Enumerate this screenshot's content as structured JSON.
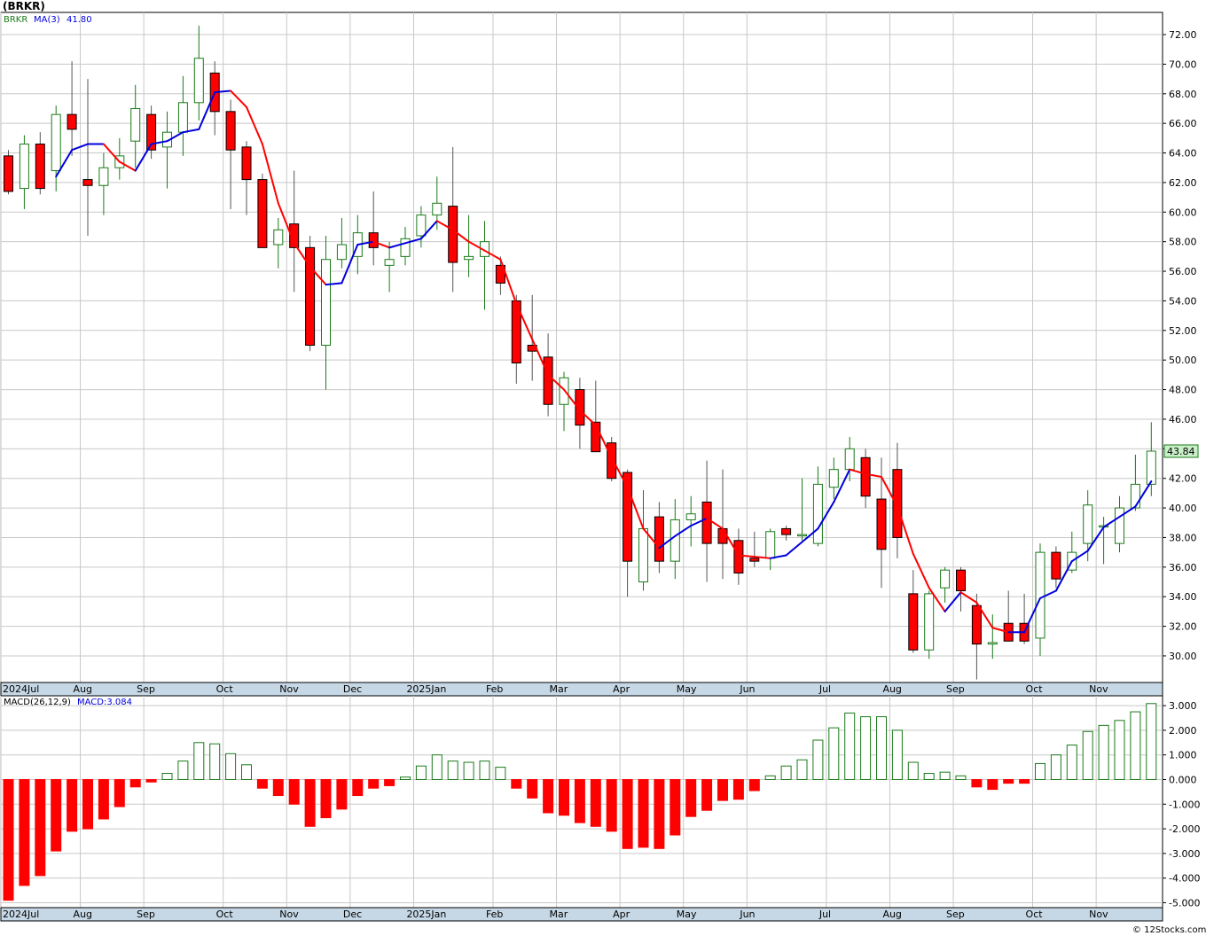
{
  "header": {
    "title": "(BRKR)"
  },
  "legend": {
    "price_label": "BRKR",
    "ma_label": "MA(3)",
    "ma_value": "41.80"
  },
  "macd_legend": {
    "label": "MACD(26,12,9)",
    "value": "MACD:3.084"
  },
  "credit": "© 12Stocks.com",
  "last_price_badge": "43.84",
  "colors": {
    "up": "#1a7a1a",
    "down": "#ff0000",
    "down_body": "#ff0000",
    "ma_up": "#0000dd",
    "ma_down": "#ff0000",
    "grid": "#c8c8c8",
    "axis_band": "#c6d8e6",
    "badge_fill": "#c8f0c8"
  },
  "chart_data": [
    {
      "type": "candlestick",
      "title": "(BRKR)",
      "ylim": [
        28.2,
        73.5
      ],
      "yticks": [
        30,
        32,
        34,
        36,
        38,
        40,
        42,
        44,
        46,
        48,
        50,
        52,
        54,
        56,
        58,
        60,
        62,
        64,
        66,
        68,
        70,
        72
      ],
      "ytick_labels": [
        "30.00",
        "32.00",
        "34.00",
        "36.00",
        "38.00",
        "40.00",
        "42.00",
        "44.00",
        "46.00",
        "48.00",
        "50.00",
        "52.00",
        "54.00",
        "56.00",
        "58.00",
        "60.00",
        "62.00",
        "64.00",
        "66.00",
        "68.00",
        "70.00",
        "72.00"
      ],
      "month_labels": [
        "2024Jul",
        "Aug",
        "Sep",
        "Oct",
        "Nov",
        "Dec",
        "2025Jan",
        "Feb",
        "Mar",
        "Apr",
        "May",
        "Jun",
        "Jul",
        "Aug",
        "Sep",
        "Oct",
        "Nov"
      ],
      "month_start_index": [
        0,
        5,
        9,
        14,
        18,
        22,
        26,
        31,
        35,
        39,
        43,
        47,
        52,
        56,
        60,
        65,
        69
      ],
      "candles": [
        [
          63.8,
          64.2,
          61.2,
          61.4
        ],
        [
          61.6,
          65.2,
          60.2,
          64.6
        ],
        [
          64.6,
          65.4,
          61.2,
          61.6
        ],
        [
          62.8,
          67.2,
          61.4,
          66.6
        ],
        [
          66.6,
          70.2,
          63.8,
          65.6
        ],
        [
          62.2,
          69.0,
          58.4,
          61.8
        ],
        [
          61.8,
          64.0,
          59.8,
          63.0
        ],
        [
          63.0,
          65.0,
          62.2,
          63.8
        ],
        [
          64.8,
          68.6,
          63.0,
          67.0
        ],
        [
          66.6,
          67.2,
          63.6,
          64.2
        ],
        [
          64.4,
          66.8,
          61.6,
          65.4
        ],
        [
          65.4,
          69.2,
          63.8,
          67.4
        ],
        [
          67.4,
          72.6,
          66.2,
          70.4
        ],
        [
          69.4,
          70.2,
          65.2,
          66.8
        ],
        [
          66.8,
          67.6,
          60.2,
          64.2
        ],
        [
          64.4,
          64.8,
          59.8,
          62.2
        ],
        [
          62.2,
          62.6,
          57.6,
          57.6
        ],
        [
          57.8,
          59.6,
          56.2,
          58.8
        ],
        [
          59.2,
          62.8,
          54.6,
          57.6
        ],
        [
          57.6,
          58.4,
          50.6,
          51.0
        ],
        [
          51.0,
          58.4,
          48.0,
          56.8
        ],
        [
          56.8,
          59.6,
          56.2,
          57.8
        ],
        [
          57.0,
          59.8,
          55.8,
          58.6
        ],
        [
          58.6,
          61.4,
          56.4,
          57.6
        ],
        [
          56.4,
          58.0,
          54.6,
          56.8
        ],
        [
          57.0,
          59.0,
          56.4,
          58.2
        ],
        [
          58.4,
          60.4,
          57.6,
          59.8
        ],
        [
          59.8,
          62.4,
          58.8,
          60.6
        ],
        [
          60.4,
          64.4,
          54.6,
          56.6
        ],
        [
          56.8,
          59.8,
          55.6,
          57.0
        ],
        [
          57.0,
          59.4,
          53.4,
          58.0
        ],
        [
          56.4,
          57.0,
          54.4,
          55.2
        ],
        [
          54.0,
          54.4,
          48.4,
          49.8
        ],
        [
          51.0,
          54.4,
          48.6,
          50.6
        ],
        [
          50.2,
          51.8,
          46.2,
          47.0
        ],
        [
          47.0,
          49.2,
          45.2,
          48.8
        ],
        [
          48.0,
          48.8,
          44.0,
          45.6
        ],
        [
          45.8,
          48.6,
          43.8,
          43.8
        ],
        [
          44.4,
          44.8,
          41.8,
          42.0
        ],
        [
          42.4,
          42.6,
          34.0,
          36.4
        ],
        [
          35.0,
          41.2,
          34.4,
          38.6
        ],
        [
          39.4,
          40.4,
          35.6,
          36.4
        ],
        [
          36.4,
          40.6,
          35.2,
          39.2
        ],
        [
          39.2,
          40.8,
          37.4,
          39.6
        ],
        [
          40.4,
          43.2,
          35.0,
          37.6
        ],
        [
          38.6,
          42.6,
          35.2,
          37.6
        ],
        [
          37.8,
          38.6,
          34.8,
          35.6
        ],
        [
          36.6,
          38.4,
          36.0,
          36.4
        ],
        [
          36.6,
          38.6,
          35.8,
          38.4
        ],
        [
          38.6,
          38.8,
          37.8,
          38.2
        ],
        [
          38.2,
          42.0,
          37.8,
          38.2
        ],
        [
          37.6,
          42.8,
          37.4,
          41.6
        ],
        [
          41.4,
          43.4,
          40.6,
          42.6
        ],
        [
          42.6,
          44.8,
          41.8,
          44.0
        ],
        [
          43.4,
          44.0,
          40.0,
          40.8
        ],
        [
          40.6,
          43.4,
          34.6,
          37.2
        ],
        [
          42.6,
          44.4,
          36.6,
          38.0
        ],
        [
          34.2,
          35.8,
          30.2,
          30.4
        ],
        [
          30.4,
          34.4,
          29.8,
          34.2
        ],
        [
          34.6,
          36.0,
          33.6,
          35.8
        ],
        [
          35.8,
          36.0,
          33.0,
          34.4
        ],
        [
          33.4,
          34.2,
          28.4,
          30.8
        ],
        [
          30.8,
          32.8,
          29.8,
          30.9
        ],
        [
          32.2,
          34.4,
          31.0,
          31.0
        ],
        [
          32.2,
          34.2,
          30.8,
          31.0
        ],
        [
          31.2,
          37.6,
          30.0,
          37.0
        ],
        [
          37.0,
          37.4,
          34.6,
          35.2
        ],
        [
          35.8,
          38.4,
          35.6,
          37.0
        ],
        [
          37.6,
          41.2,
          36.4,
          40.2
        ],
        [
          38.8,
          39.4,
          36.2,
          38.8
        ],
        [
          37.6,
          40.8,
          37.0,
          40.0
        ],
        [
          40.0,
          43.6,
          39.8,
          41.6
        ],
        [
          41.6,
          45.8,
          40.8,
          43.84
        ]
      ],
      "ma3": [
        null,
        null,
        null,
        62.4,
        64.2,
        64.6,
        64.6,
        63.4,
        62.8,
        64.6,
        64.8,
        65.4,
        65.6,
        68.1,
        68.2,
        67.1,
        64.6,
        60.6,
        57.9,
        56.3,
        55.1,
        55.2,
        57.8,
        58.0,
        57.6,
        57.9,
        58.2,
        59.4,
        58.8,
        58.0,
        57.4,
        56.8,
        53.8,
        51.4,
        49.0,
        48.0,
        46.6,
        45.6,
        43.4,
        41.4,
        38.6,
        37.3,
        38.1,
        38.8,
        39.3,
        38.6,
        36.8,
        36.7,
        36.6,
        36.8,
        37.7,
        38.6,
        40.4,
        42.6,
        42.3,
        42.1,
        40.1,
        36.9,
        34.6,
        33.0,
        34.3,
        33.6,
        31.9,
        31.6,
        31.6,
        33.9,
        34.4,
        36.4,
        37.1,
        38.7,
        39.4,
        40.1,
        41.8
      ]
    },
    {
      "type": "bar",
      "title": "MACD(26,12,9)",
      "ylim": [
        -5.2,
        3.4
      ],
      "yticks": [
        -5,
        -4,
        -3,
        -2,
        -1,
        0,
        1,
        2,
        3
      ],
      "ytick_labels": [
        "-5.000",
        "-4.000",
        "-3.000",
        "-2.000",
        "-1.000",
        "0.000",
        "1.000",
        "2.000",
        "3.000"
      ],
      "values": [
        -4.9,
        -4.3,
        -3.9,
        -2.9,
        -2.1,
        -2.0,
        -1.6,
        -1.1,
        -0.3,
        -0.1,
        0.25,
        0.75,
        1.5,
        1.45,
        1.05,
        0.6,
        -0.35,
        -0.65,
        -1.0,
        -1.9,
        -1.55,
        -1.2,
        -0.65,
        -0.35,
        -0.25,
        0.1,
        0.55,
        1.0,
        0.75,
        0.7,
        0.75,
        0.5,
        -0.35,
        -0.75,
        -1.35,
        -1.45,
        -1.75,
        -1.9,
        -2.1,
        -2.8,
        -2.75,
        -2.8,
        -2.25,
        -1.5,
        -1.25,
        -0.85,
        -0.8,
        -0.45,
        0.15,
        0.55,
        0.8,
        1.6,
        2.1,
        2.7,
        2.55,
        2.55,
        2.0,
        0.7,
        0.25,
        0.3,
        0.15,
        -0.3,
        -0.4,
        -0.15,
        -0.15,
        0.65,
        1.0,
        1.4,
        1.95,
        2.2,
        2.4,
        2.75,
        3.084
      ]
    }
  ]
}
